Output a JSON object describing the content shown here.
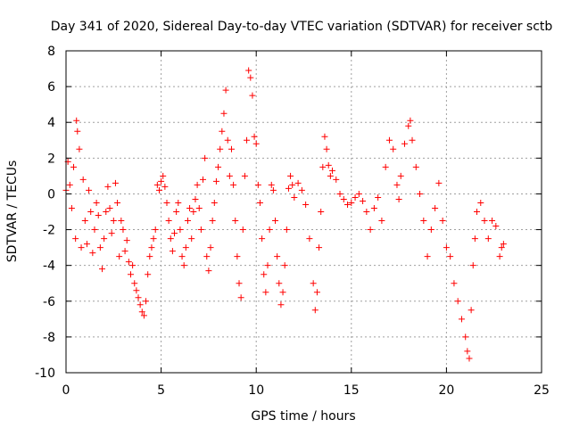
{
  "chart_data": {
    "type": "scatter",
    "title": "Day 341 of 2020, Sidereal Day-to-day VTEC variation (SDTVAR) for receiver sctb",
    "xlabel": "GPS time / hours",
    "ylabel": "SDTVAR / TECUs",
    "xlim": [
      0,
      25
    ],
    "ylim": [
      -10,
      8
    ],
    "xticks": [
      0,
      5,
      10,
      15,
      20,
      25
    ],
    "yticks": [
      -10,
      -8,
      -6,
      -4,
      -2,
      0,
      2,
      4,
      6,
      8
    ],
    "xtick_labels": [
      "0",
      "5",
      "10",
      "15",
      "20",
      "25"
    ],
    "ytick_labels": [
      "-10",
      "-8",
      "-6",
      "-4",
      "-2",
      "0",
      "2",
      "4",
      "6",
      "8"
    ],
    "grid": true,
    "marker": "+",
    "color": "#ff0000",
    "series": [
      {
        "name": "SDTVAR",
        "points": [
          [
            0.0,
            0.2
          ],
          [
            0.1,
            1.8
          ],
          [
            0.2,
            0.5
          ],
          [
            0.3,
            -0.8
          ],
          [
            0.4,
            1.5
          ],
          [
            0.5,
            -2.5
          ],
          [
            0.55,
            4.1
          ],
          [
            0.6,
            3.5
          ],
          [
            0.7,
            2.5
          ],
          [
            0.8,
            -3.0
          ],
          [
            0.9,
            0.8
          ],
          [
            1.0,
            -1.5
          ],
          [
            1.1,
            -2.8
          ],
          [
            1.2,
            0.2
          ],
          [
            1.3,
            -1.0
          ],
          [
            1.4,
            -3.3
          ],
          [
            1.5,
            -2.0
          ],
          [
            1.6,
            -0.5
          ],
          [
            1.7,
            -1.2
          ],
          [
            1.8,
            -3.0
          ],
          [
            1.9,
            -4.2
          ],
          [
            2.0,
            -2.5
          ],
          [
            2.1,
            -1.0
          ],
          [
            2.2,
            0.4
          ],
          [
            2.3,
            -0.8
          ],
          [
            2.4,
            -2.2
          ],
          [
            2.5,
            -1.5
          ],
          [
            2.6,
            0.6
          ],
          [
            2.7,
            -0.5
          ],
          [
            2.8,
            -3.5
          ],
          [
            2.9,
            -1.5
          ],
          [
            3.0,
            -2.0
          ],
          [
            3.1,
            -3.2
          ],
          [
            3.2,
            -2.6
          ],
          [
            3.3,
            -3.8
          ],
          [
            3.4,
            -4.5
          ],
          [
            3.5,
            -4.0
          ],
          [
            3.6,
            -5.0
          ],
          [
            3.7,
            -5.4
          ],
          [
            3.8,
            -5.8
          ],
          [
            3.9,
            -6.2
          ],
          [
            4.0,
            -6.6
          ],
          [
            4.1,
            -6.8
          ],
          [
            4.2,
            -6.0
          ],
          [
            4.3,
            -4.5
          ],
          [
            4.4,
            -3.5
          ],
          [
            4.5,
            -3.0
          ],
          [
            4.6,
            -2.5
          ],
          [
            4.7,
            -2.0
          ],
          [
            4.8,
            0.5
          ],
          [
            4.9,
            0.2
          ],
          [
            5.0,
            0.7
          ],
          [
            5.1,
            1.0
          ],
          [
            5.2,
            0.4
          ],
          [
            5.3,
            -0.5
          ],
          [
            5.4,
            -1.5
          ],
          [
            5.5,
            -2.5
          ],
          [
            5.6,
            -3.2
          ],
          [
            5.7,
            -2.2
          ],
          [
            5.8,
            -1.0
          ],
          [
            5.9,
            -0.5
          ],
          [
            6.0,
            -2.0
          ],
          [
            6.1,
            -3.5
          ],
          [
            6.2,
            -4.0
          ],
          [
            6.3,
            -3.0
          ],
          [
            6.4,
            -1.5
          ],
          [
            6.5,
            -0.8
          ],
          [
            6.6,
            -2.5
          ],
          [
            6.7,
            -1.0
          ],
          [
            6.8,
            -0.3
          ],
          [
            6.9,
            0.5
          ],
          [
            7.0,
            -0.8
          ],
          [
            7.1,
            -2.0
          ],
          [
            7.2,
            0.8
          ],
          [
            7.3,
            2.0
          ],
          [
            7.4,
            -3.5
          ],
          [
            7.5,
            -4.3
          ],
          [
            7.6,
            -3.0
          ],
          [
            7.7,
            -1.5
          ],
          [
            7.8,
            -0.5
          ],
          [
            7.9,
            0.7
          ],
          [
            8.0,
            1.5
          ],
          [
            8.1,
            2.5
          ],
          [
            8.2,
            3.5
          ],
          [
            8.3,
            4.5
          ],
          [
            8.4,
            5.8
          ],
          [
            8.5,
            3.0
          ],
          [
            8.6,
            1.0
          ],
          [
            8.7,
            2.5
          ],
          [
            8.8,
            0.5
          ],
          [
            8.9,
            -1.5
          ],
          [
            9.0,
            -3.5
          ],
          [
            9.1,
            -5.0
          ],
          [
            9.2,
            -5.8
          ],
          [
            9.3,
            -2.0
          ],
          [
            9.4,
            1.0
          ],
          [
            9.5,
            3.0
          ],
          [
            9.6,
            6.9
          ],
          [
            9.7,
            6.5
          ],
          [
            9.8,
            5.5
          ],
          [
            9.9,
            3.2
          ],
          [
            10.0,
            2.8
          ],
          [
            10.1,
            0.5
          ],
          [
            10.2,
            -0.5
          ],
          [
            10.3,
            -2.5
          ],
          [
            10.4,
            -4.5
          ],
          [
            10.5,
            -5.5
          ],
          [
            10.6,
            -4.0
          ],
          [
            10.7,
            -2.0
          ],
          [
            10.8,
            0.5
          ],
          [
            10.9,
            0.2
          ],
          [
            11.0,
            -1.5
          ],
          [
            11.1,
            -3.5
          ],
          [
            11.2,
            -5.0
          ],
          [
            11.3,
            -6.2
          ],
          [
            11.4,
            -5.5
          ],
          [
            11.5,
            -4.0
          ],
          [
            11.6,
            -2.0
          ],
          [
            11.7,
            0.3
          ],
          [
            11.8,
            1.0
          ],
          [
            11.9,
            0.5
          ],
          [
            12.0,
            -0.2
          ],
          [
            12.2,
            0.6
          ],
          [
            12.4,
            0.2
          ],
          [
            12.6,
            -0.6
          ],
          [
            12.8,
            -2.5
          ],
          [
            13.0,
            -5.0
          ],
          [
            13.1,
            -6.5
          ],
          [
            13.2,
            -5.5
          ],
          [
            13.3,
            -3.0
          ],
          [
            13.4,
            -1.0
          ],
          [
            13.5,
            1.5
          ],
          [
            13.6,
            3.2
          ],
          [
            13.7,
            2.5
          ],
          [
            13.8,
            1.6
          ],
          [
            13.9,
            1.0
          ],
          [
            14.0,
            1.3
          ],
          [
            14.2,
            0.8
          ],
          [
            14.4,
            0.0
          ],
          [
            14.6,
            -0.3
          ],
          [
            14.8,
            -0.6
          ],
          [
            15.0,
            -0.5
          ],
          [
            15.2,
            -0.2
          ],
          [
            15.4,
            0.0
          ],
          [
            15.6,
            -0.4
          ],
          [
            15.8,
            -1.0
          ],
          [
            16.0,
            -2.0
          ],
          [
            16.2,
            -0.8
          ],
          [
            16.4,
            -0.2
          ],
          [
            16.6,
            -1.5
          ],
          [
            16.8,
            1.5
          ],
          [
            17.0,
            3.0
          ],
          [
            17.2,
            2.5
          ],
          [
            17.4,
            0.5
          ],
          [
            17.5,
            -0.3
          ],
          [
            17.6,
            1.0
          ],
          [
            17.8,
            2.8
          ],
          [
            18.0,
            3.8
          ],
          [
            18.1,
            4.1
          ],
          [
            18.2,
            3.0
          ],
          [
            18.4,
            1.5
          ],
          [
            18.6,
            0.0
          ],
          [
            18.8,
            -1.5
          ],
          [
            19.0,
            -3.5
          ],
          [
            19.2,
            -2.0
          ],
          [
            19.4,
            -0.8
          ],
          [
            19.6,
            0.6
          ],
          [
            19.8,
            -1.5
          ],
          [
            20.0,
            -3.0
          ],
          [
            20.2,
            -3.5
          ],
          [
            20.4,
            -5.0
          ],
          [
            20.6,
            -6.0
          ],
          [
            20.8,
            -7.0
          ],
          [
            21.0,
            -8.0
          ],
          [
            21.1,
            -8.8
          ],
          [
            21.2,
            -9.2
          ],
          [
            21.3,
            -6.5
          ],
          [
            21.4,
            -4.0
          ],
          [
            21.5,
            -2.5
          ],
          [
            21.6,
            -1.0
          ],
          [
            21.8,
            -0.5
          ],
          [
            22.0,
            -1.5
          ],
          [
            22.2,
            -2.5
          ],
          [
            22.4,
            -1.5
          ],
          [
            22.6,
            -1.8
          ],
          [
            22.8,
            -3.5
          ],
          [
            22.9,
            -3.0
          ],
          [
            23.0,
            -2.8
          ]
        ]
      }
    ]
  }
}
